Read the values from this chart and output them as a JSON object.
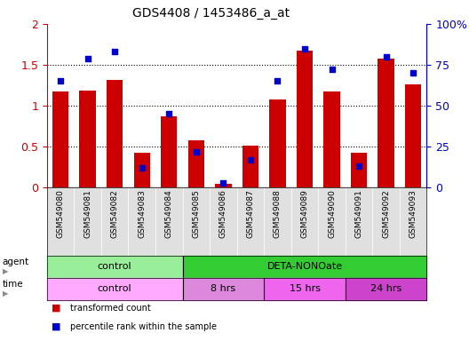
{
  "title": "GDS4408 / 1453486_a_at",
  "samples": [
    "GSM549080",
    "GSM549081",
    "GSM549082",
    "GSM549083",
    "GSM549084",
    "GSM549085",
    "GSM549086",
    "GSM549087",
    "GSM549088",
    "GSM549089",
    "GSM549090",
    "GSM549091",
    "GSM549092",
    "GSM549093"
  ],
  "red_values": [
    1.17,
    1.19,
    1.32,
    0.43,
    0.87,
    0.58,
    0.05,
    0.51,
    1.08,
    1.67,
    1.17,
    0.42,
    1.58,
    1.26
  ],
  "blue_values": [
    65,
    79,
    83,
    12,
    45,
    22,
    3,
    17,
    65,
    85,
    72,
    13,
    80,
    70
  ],
  "left_ylim": [
    0,
    2
  ],
  "right_ylim": [
    0,
    100
  ],
  "left_yticks": [
    0,
    0.5,
    1.0,
    1.5,
    2.0
  ],
  "right_yticks": [
    0,
    25,
    50,
    75,
    100
  ],
  "right_yticklabels": [
    "0",
    "25",
    "50",
    "75",
    "100%"
  ],
  "left_ytick_labels": [
    "0",
    "0.5",
    "1",
    "1.5",
    "2"
  ],
  "grid_values": [
    0.5,
    1.0,
    1.5
  ],
  "bar_color": "#cc0000",
  "dot_color": "#0000cc",
  "agent_groups": [
    {
      "label": "control",
      "start": 0,
      "end": 4,
      "color": "#99ee99"
    },
    {
      "label": "DETA-NONOate",
      "start": 5,
      "end": 13,
      "color": "#33cc33"
    }
  ],
  "time_groups": [
    {
      "label": "control",
      "start": 0,
      "end": 4,
      "color": "#ffaaff"
    },
    {
      "label": "8 hrs",
      "start": 5,
      "end": 7,
      "color": "#dd88dd"
    },
    {
      "label": "15 hrs",
      "start": 8,
      "end": 10,
      "color": "#ee66ee"
    },
    {
      "label": "24 hrs",
      "start": 11,
      "end": 13,
      "color": "#cc44cc"
    }
  ],
  "legend_items": [
    {
      "label": "transformed count",
      "color": "#cc0000"
    },
    {
      "label": "percentile rank within the sample",
      "color": "#0000cc"
    }
  ],
  "bar_width": 0.6,
  "background_color": "#ffffff"
}
